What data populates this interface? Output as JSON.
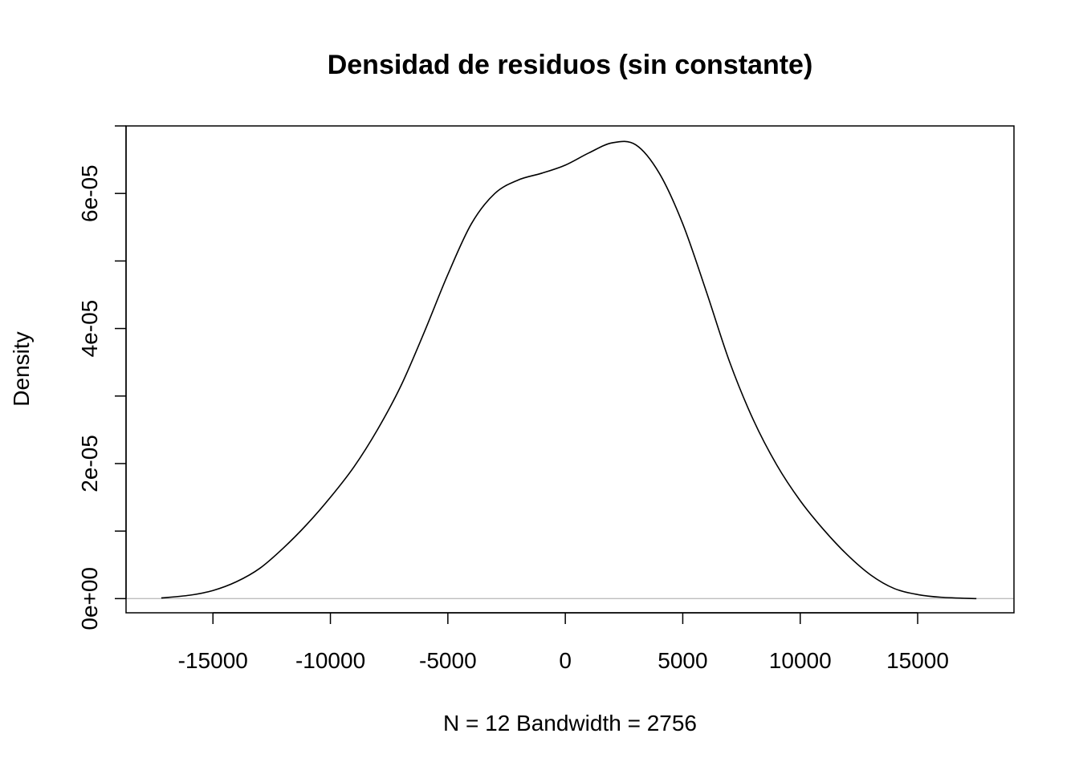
{
  "chart_data": {
    "type": "line",
    "title": "Densidad de residuos (sin constante)",
    "xlabel": "N = 12   Bandwidth = 2756",
    "ylabel": "Density",
    "xlim": [
      -18700,
      19100
    ],
    "ylim": [
      -2.1e-06,
      7e-05
    ],
    "x_ticks": [
      -15000,
      -10000,
      -5000,
      0,
      5000,
      10000,
      15000
    ],
    "x_tick_labels": [
      "-15000",
      "-10000",
      "-5000",
      "0",
      "5000",
      "10000",
      "15000"
    ],
    "y_ticks": [
      0,
      1e-05,
      2e-05,
      3e-05,
      4e-05,
      5e-05,
      6e-05,
      7e-05
    ],
    "y_tick_labels": [
      "0e+00",
      "",
      "2e-05",
      "",
      "4e-05",
      "",
      "6e-05",
      ""
    ],
    "baseline": 0,
    "grid": false,
    "series": [
      {
        "x": [
          -17200,
          -16000,
          -15000,
          -14000,
          -13000,
          -12000,
          -11000,
          -10000,
          -9000,
          -8000,
          -7000,
          -6000,
          -5000,
          -4000,
          -3000,
          -2000,
          -1000,
          0,
          1000,
          2000,
          3000,
          4000,
          5000,
          6000,
          7000,
          8000,
          9000,
          10000,
          11000,
          12000,
          13000,
          14000,
          15000,
          16000,
          17500
        ],
        "values": [
          1e-07,
          5e-07,
          1.2e-06,
          2.5e-06,
          4.5e-06,
          7.5e-06,
          1.1e-05,
          1.5e-05,
          1.95e-05,
          2.5e-05,
          3.15e-05,
          3.95e-05,
          4.8e-05,
          5.55e-05,
          6e-05,
          6.2e-05,
          6.3e-05,
          6.42e-05,
          6.6e-05,
          6.75e-05,
          6.72e-05,
          6.3e-05,
          5.55e-05,
          4.55e-05,
          3.5e-05,
          2.65e-05,
          1.98e-05,
          1.45e-05,
          1.02e-05,
          6.5e-06,
          3.5e-06,
          1.5e-06,
          6e-07,
          2e-07,
          0.0
        ]
      }
    ],
    "colors": {
      "line": "#000000",
      "baseline": "#bebebe",
      "frame": "#000000"
    }
  }
}
